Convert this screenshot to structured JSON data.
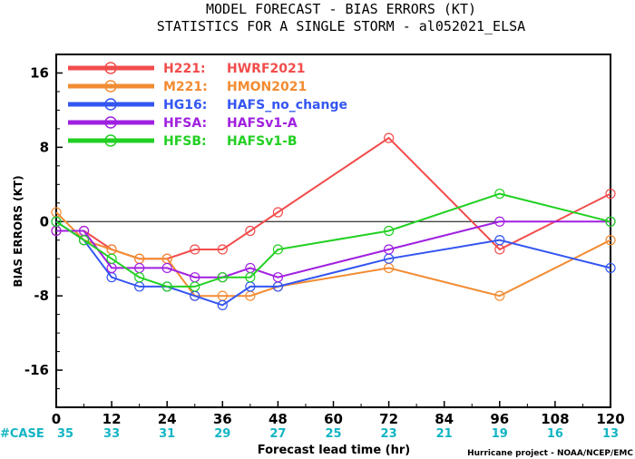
{
  "chart_data": {
    "type": "line",
    "title": "MODEL FORECAST - BIAS ERRORS (KT)",
    "subtitle": "STATISTICS FOR A SINGLE STORM - al052021_ELSA",
    "xlabel": "Forecast lead time (hr)",
    "ylabel": "BIAS ERRORS (KT)",
    "xlim": [
      0,
      120
    ],
    "ylim": [
      -20,
      18
    ],
    "x_ticks": [
      0,
      12,
      24,
      36,
      48,
      60,
      72,
      84,
      96,
      108,
      120
    ],
    "y_ticks": [
      -16,
      -8,
      0,
      8,
      16
    ],
    "zero_line": true,
    "legend_position": "top-left",
    "case_label": "#CASE",
    "case_counts": [
      35,
      33,
      31,
      29,
      27,
      25,
      23,
      21,
      19,
      16,
      13
    ],
    "credit": "Hurricane project - NOAA/NCEP/EMC",
    "series": [
      {
        "code": "H221",
        "name": "HWRF2021",
        "color": "#f24c4c",
        "x": [
          0,
          6,
          12,
          18,
          24,
          30,
          36,
          42,
          48,
          72,
          96,
          120
        ],
        "y": [
          -1,
          -1,
          -3,
          -4,
          -4,
          -3,
          -3,
          -1,
          1,
          9,
          -3,
          3
        ]
      },
      {
        "code": "M221",
        "name": "HMON2021",
        "color": "#f28c33",
        "x": [
          0,
          6,
          12,
          18,
          24,
          30,
          36,
          42,
          48,
          72,
          96,
          120
        ],
        "y": [
          1,
          -2,
          -3,
          -4,
          -4,
          -8,
          -8,
          -8,
          -7,
          -5,
          -8,
          -2
        ]
      },
      {
        "code": "HG16",
        "name": "HAFS_no_change",
        "color": "#3355f2",
        "x": [
          0,
          6,
          12,
          18,
          24,
          30,
          36,
          42,
          48,
          72,
          96,
          120
        ],
        "y": [
          0,
          -2,
          -6,
          -7,
          -7,
          -8,
          -9,
          -7,
          -7,
          -4,
          -2,
          -5
        ]
      },
      {
        "code": "HFSA",
        "name": "HAFSv1-A",
        "color": "#a020e0",
        "x": [
          0,
          6,
          12,
          18,
          24,
          30,
          36,
          42,
          48,
          72,
          96,
          120
        ],
        "y": [
          -1,
          -1,
          -5,
          -5,
          -5,
          -6,
          -6,
          -5,
          -6,
          -3,
          0,
          0
        ]
      },
      {
        "code": "HFSB",
        "name": "HAFSv1-B",
        "color": "#22d022",
        "x": [
          0,
          6,
          12,
          18,
          24,
          30,
          36,
          42,
          48,
          72,
          96,
          120
        ],
        "y": [
          0,
          -2,
          -4,
          -6,
          -7,
          -7,
          -6,
          -6,
          -3,
          -1,
          3,
          0
        ]
      }
    ]
  }
}
